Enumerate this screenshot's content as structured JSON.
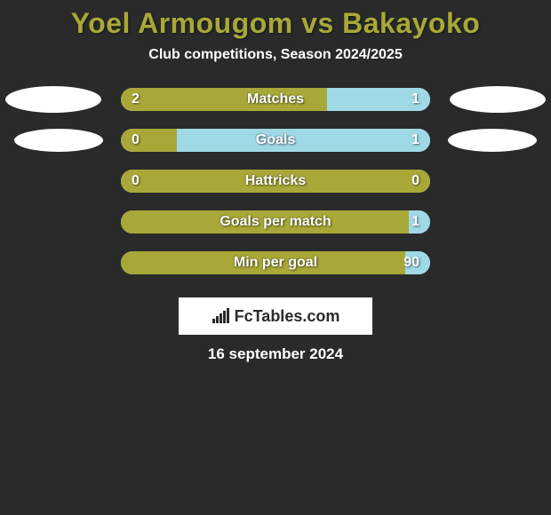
{
  "title": "Yoel Armougom vs Bakayoko",
  "subtitle": "Club competitions, Season 2024/2025",
  "date": "16 september 2024",
  "logo_text": "FcTables.com",
  "colors": {
    "left_bar": "#a8a838",
    "right_bar": "#9fd9e6",
    "background": "#2a2a2a",
    "title_color": "#a8a838",
    "text_color": "#ffffff"
  },
  "rows": [
    {
      "label": "Matches",
      "left_value": "2",
      "right_value": "1",
      "left_pct": 66.7,
      "show_ellipse": true,
      "ellipse_variant": 1
    },
    {
      "label": "Goals",
      "left_value": "0",
      "right_value": "1",
      "left_pct": 18.0,
      "show_ellipse": true,
      "ellipse_variant": 2
    },
    {
      "label": "Hattricks",
      "left_value": "0",
      "right_value": "0",
      "left_pct": 100.0,
      "show_ellipse": false,
      "ellipse_variant": 0
    },
    {
      "label": "Goals per match",
      "left_value": "",
      "right_value": "1",
      "left_pct": 93.0,
      "show_ellipse": false,
      "ellipse_variant": 0
    },
    {
      "label": "Min per goal",
      "left_value": "",
      "right_value": "90",
      "left_pct": 92.0,
      "show_ellipse": false,
      "ellipse_variant": 0
    }
  ]
}
